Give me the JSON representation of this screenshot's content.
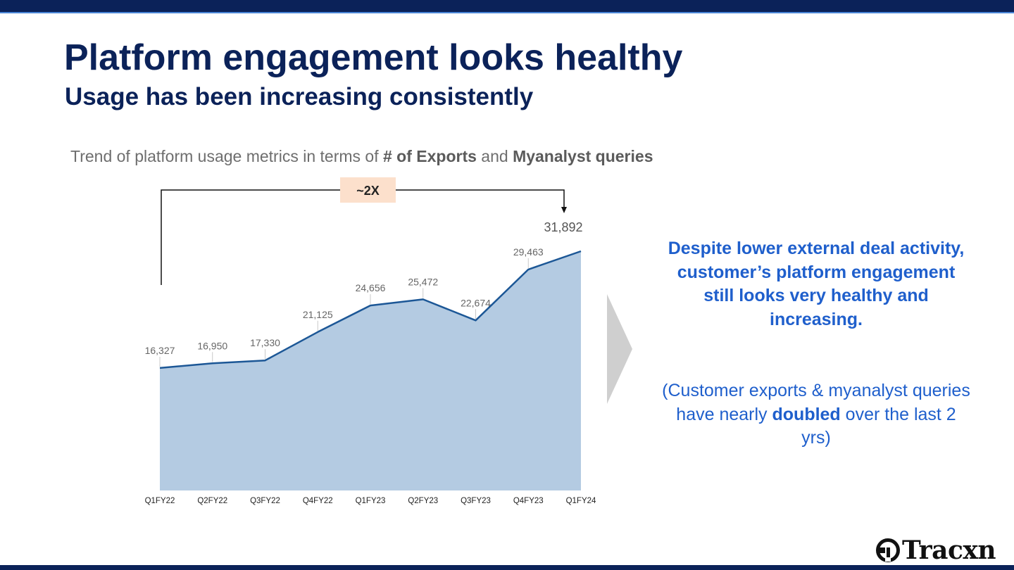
{
  "slide": {
    "title": "Platform engagement looks healthy",
    "subtitle": "Usage has been increasing consistently",
    "caption": {
      "prefix": "Trend of platform usage metrics in terms of ",
      "bold1": "# of Exports",
      "middle": " and ",
      "bold2": "Myanalyst queries"
    }
  },
  "growth_badge": "~2X",
  "callout": {
    "main": "Despite lower external deal activity, customer’s platform engagement still looks very healthy and increasing.",
    "note_prefix": "(Customer exports & myanalyst queries have nearly ",
    "note_bold": "doubled",
    "note_suffix": " over the last 2 yrs)"
  },
  "logo": {
    "text": "Tracxn",
    "icon": "tracxn-logo-icon"
  },
  "colors": {
    "navy": "#0b2259",
    "accent_blue": "#1f5fcc",
    "area_fill": "#b4cbe2",
    "line": "#1c5796",
    "badge_bg": "#fce0cc"
  },
  "chart_data": {
    "type": "area",
    "categories": [
      "Q1FY22",
      "Q2FY22",
      "Q3FY22",
      "Q4FY22",
      "Q1FY23",
      "Q2FY23",
      "Q3FY23",
      "Q4FY23",
      "Q1FY24"
    ],
    "values": [
      16327,
      16950,
      17330,
      21125,
      24656,
      25472,
      22674,
      29463,
      31892
    ],
    "labels": [
      "16,327",
      "16,950",
      "17,330",
      "21,125",
      "24,656",
      "25,472",
      "22,674",
      "29,463",
      "31,892"
    ],
    "ylim": [
      0,
      31892
    ],
    "grid": false,
    "legend": "none"
  }
}
